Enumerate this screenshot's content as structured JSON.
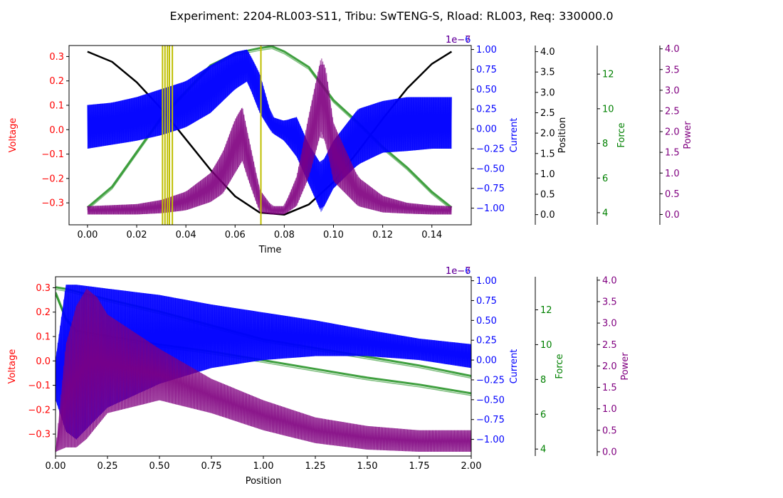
{
  "figure": {
    "title": "Experiment: 2204-RL003-S11, Tribu: SwTENG-S, Rload: RL003, Req: 330000.0"
  },
  "colors": {
    "voltage": "#ff0000",
    "current": "#0000ff",
    "position": "#000000",
    "force": "#008000",
    "power": "#800080",
    "marker": "#bfbf00"
  },
  "chart_data": [
    {
      "type": "line",
      "xlabel": "Time",
      "xlim": [
        -0.0075,
        0.156
      ],
      "xticks": [
        0.0,
        0.02,
        0.04,
        0.06,
        0.08,
        0.1,
        0.12,
        0.14
      ],
      "axes": [
        {
          "name": "voltage",
          "label": "Voltage",
          "lim": [
            -0.39,
            0.345
          ],
          "ticks": [
            -0.3,
            -0.2,
            -0.1,
            0.0,
            0.1,
            0.2,
            0.3
          ],
          "decimals": 1
        },
        {
          "name": "current",
          "label": "Current",
          "lim": [
            -1.21,
            1.05
          ],
          "ticks": [
            -1.0,
            -0.75,
            -0.5,
            -0.25,
            0.0,
            0.25,
            0.5,
            0.75,
            1.0
          ],
          "decimals": 2,
          "offset": "1e−6"
        },
        {
          "name": "position",
          "label": "Position",
          "lim": [
            -0.25,
            4.15
          ],
          "ticks": [
            0.0,
            0.5,
            1.0,
            1.5,
            2.0,
            2.5,
            3.0,
            3.5,
            4.0
          ],
          "decimals": 1
        },
        {
          "name": "force",
          "label": "Force",
          "lim": [
            3.3,
            13.65
          ],
          "ticks": [
            4,
            6,
            8,
            10,
            12
          ],
          "decimals": 0
        },
        {
          "name": "power",
          "label": "Power",
          "lim": [
            -0.25,
            4.08
          ],
          "ticks": [
            0.0,
            0.5,
            1.0,
            1.5,
            2.0,
            2.5,
            3.0,
            3.5,
            4.0
          ],
          "decimals": 1,
          "offset": "1e−7"
        }
      ],
      "series": [
        {
          "axis": "position",
          "x": [
            0.0,
            0.01,
            0.02,
            0.03,
            0.04,
            0.05,
            0.06,
            0.07,
            0.08,
            0.09,
            0.1,
            0.11,
            0.12,
            0.13,
            0.14,
            0.148
          ],
          "y": [
            4.0,
            3.75,
            3.25,
            2.6,
            1.85,
            1.1,
            0.45,
            0.05,
            0.0,
            0.25,
            0.8,
            1.55,
            2.35,
            3.1,
            3.7,
            4.0
          ]
        },
        {
          "axis": "force",
          "x": [
            0.0,
            0.01,
            0.02,
            0.03,
            0.04,
            0.05,
            0.06,
            0.07,
            0.075,
            0.08,
            0.09,
            0.1,
            0.11,
            0.12,
            0.13,
            0.14,
            0.148
          ],
          "y": [
            4.3,
            5.5,
            7.5,
            9.5,
            11.0,
            12.5,
            13.2,
            13.5,
            13.6,
            13.3,
            12.4,
            10.5,
            9.2,
            7.8,
            6.6,
            5.2,
            4.3
          ]
        },
        {
          "axis": "current",
          "x": [
            0.0,
            0.01,
            0.02,
            0.03,
            0.04,
            0.05,
            0.06,
            0.065,
            0.07,
            0.075,
            0.08,
            0.085,
            0.09,
            0.095,
            0.1,
            0.11,
            0.12,
            0.13,
            0.14,
            0.148
          ],
          "upper": [
            0.3,
            0.33,
            0.4,
            0.5,
            0.6,
            0.8,
            0.97,
            1.0,
            0.7,
            0.15,
            0.1,
            0.15,
            -0.2,
            -0.45,
            -0.15,
            0.25,
            0.35,
            0.4,
            0.4,
            0.4
          ],
          "lower": [
            -0.25,
            -0.2,
            -0.15,
            -0.08,
            0.02,
            0.2,
            0.5,
            0.6,
            0.2,
            -0.05,
            -0.15,
            -0.35,
            -0.7,
            -1.05,
            -0.75,
            -0.45,
            -0.3,
            -0.28,
            -0.25,
            -0.25
          ]
        },
        {
          "axis": "power",
          "x": [
            0.0,
            0.02,
            0.03,
            0.04,
            0.05,
            0.055,
            0.06,
            0.063,
            0.065,
            0.07,
            0.075,
            0.08,
            0.085,
            0.09,
            0.095,
            0.097,
            0.1,
            0.11,
            0.12,
            0.13,
            0.14,
            0.148
          ],
          "upper": [
            0.2,
            0.25,
            0.35,
            0.55,
            1.0,
            1.5,
            2.3,
            2.6,
            2.0,
            0.6,
            0.2,
            0.2,
            0.9,
            2.4,
            3.8,
            3.5,
            2.2,
            0.9,
            0.45,
            0.28,
            0.22,
            0.2
          ],
          "lower": [
            0.0,
            0.0,
            0.03,
            0.1,
            0.3,
            0.5,
            1.0,
            1.3,
            0.9,
            0.05,
            0.0,
            0.0,
            0.2,
            0.9,
            2.0,
            1.7,
            0.8,
            0.2,
            0.05,
            0.02,
            0.0,
            0.0
          ]
        }
      ],
      "vlines": [
        0.0305,
        0.0315,
        0.0325,
        0.0333,
        0.0345,
        0.0705
      ]
    },
    {
      "type": "line",
      "xlabel": "Position",
      "xlim": [
        0.0,
        2.0
      ],
      "xticks": [
        0.0,
        0.25,
        0.5,
        0.75,
        1.0,
        1.25,
        1.5,
        1.75,
        2.0
      ],
      "axes": [
        {
          "name": "voltage",
          "label": "Voltage",
          "lim": [
            -0.39,
            0.345
          ],
          "ticks": [
            -0.3,
            -0.2,
            -0.1,
            0.0,
            0.1,
            0.2,
            0.3
          ],
          "decimals": 1
        },
        {
          "name": "current",
          "label": "Current",
          "lim": [
            -1.21,
            1.05
          ],
          "ticks": [
            -1.0,
            -0.75,
            -0.5,
            -0.25,
            0.0,
            0.25,
            0.5,
            0.75,
            1.0
          ],
          "decimals": 2,
          "offset": "1e−6"
        },
        {
          "name": "force",
          "label": "Force",
          "lim": [
            3.6,
            13.9
          ],
          "ticks": [
            4,
            6,
            8,
            10,
            12
          ],
          "decimals": 0
        },
        {
          "name": "power",
          "label": "Power",
          "lim": [
            -0.1,
            4.08
          ],
          "ticks": [
            0.0,
            0.5,
            1.0,
            1.5,
            2.0,
            2.5,
            3.0,
            3.5,
            4.0
          ],
          "decimals": 1,
          "offset": "1e−7"
        }
      ],
      "series": [
        {
          "axis": "force",
          "x": [
            0.0,
            0.05,
            0.25,
            0.5,
            0.75,
            1.0,
            1.25,
            1.5,
            1.75,
            2.0
          ],
          "y": [
            13.3,
            13.2,
            12.6,
            11.9,
            11.1,
            10.3,
            9.8,
            9.3,
            8.8,
            8.2
          ]
        },
        {
          "axis": "force",
          "x": [
            0.0,
            0.05,
            0.1,
            0.25,
            0.5,
            0.75,
            1.0,
            1.25,
            1.5,
            1.75,
            2.0
          ],
          "y": [
            13.0,
            11.5,
            10.8,
            10.5,
            10.0,
            9.6,
            9.1,
            8.6,
            8.1,
            7.7,
            7.2
          ]
        },
        {
          "axis": "current",
          "x": [
            0.0,
            0.05,
            0.1,
            0.25,
            0.5,
            0.75,
            1.0,
            1.25,
            1.5,
            1.75,
            2.0
          ],
          "upper": [
            0.0,
            0.95,
            0.95,
            0.9,
            0.82,
            0.7,
            0.6,
            0.5,
            0.38,
            0.27,
            0.2
          ],
          "lower": [
            -0.5,
            -0.9,
            -1.0,
            -0.6,
            -0.3,
            -0.1,
            0.0,
            0.05,
            0.05,
            0.0,
            -0.1
          ]
        },
        {
          "axis": "power",
          "x": [
            0.0,
            0.05,
            0.1,
            0.15,
            0.2,
            0.25,
            0.5,
            0.75,
            1.0,
            1.25,
            1.5,
            1.75,
            2.0
          ],
          "upper": [
            0.0,
            2.5,
            3.4,
            3.8,
            3.6,
            3.2,
            2.4,
            1.7,
            1.2,
            0.8,
            0.6,
            0.5,
            0.5
          ],
          "lower": [
            0.0,
            0.1,
            0.1,
            0.3,
            0.6,
            0.9,
            1.2,
            0.9,
            0.5,
            0.2,
            0.05,
            0.0,
            0.0
          ]
        }
      ],
      "vlines": []
    }
  ]
}
